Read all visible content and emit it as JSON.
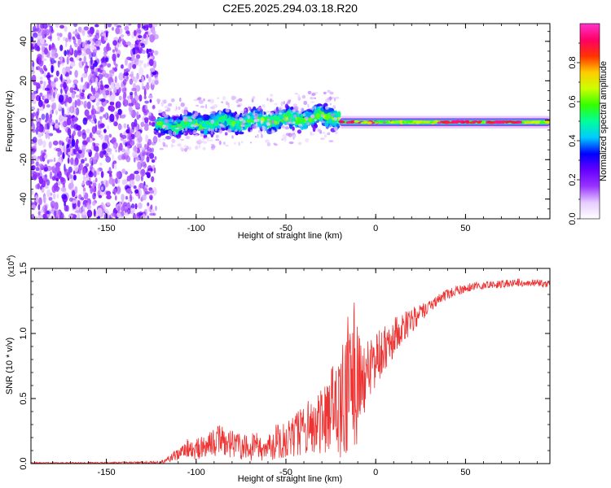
{
  "title": "C2E5.2025.294.03.18.R20",
  "chart_data": [
    {
      "type": "heatmap",
      "title": "C2E5.2025.294.03.18.R20",
      "xlabel": "Height of straight line (km)",
      "ylabel": "Frequency (Hz)",
      "xlim": [
        -192,
        97
      ],
      "ylim": [
        -50,
        49
      ],
      "xticks": [
        -150,
        -100,
        -50,
        0,
        50
      ],
      "yticks": [
        -40,
        -20,
        0,
        20,
        40
      ],
      "colorbar": {
        "label": "Normalized spectral amplitude",
        "range": [
          0,
          1
        ],
        "ticks": [
          0.0,
          0.2,
          0.4,
          0.6,
          0.8
        ],
        "tick_labels": [
          "0.0",
          "0.2",
          "0.4",
          "0.6",
          "0.8"
        ],
        "colors": [
          "#ffffff",
          "#e6ccff",
          "#9933ff",
          "#6600ff",
          "#0000ff",
          "#00ccff",
          "#00ff99",
          "#33ff00",
          "#ccff00",
          "#ffcc00",
          "#ff3300",
          "#ff0066",
          "#ff33cc"
        ]
      },
      "regions": [
        {
          "name": "noise",
          "x_range": [
            -192,
            -122
          ],
          "freq_range": [
            -50,
            49
          ],
          "amplitude": 0.15
        },
        {
          "name": "rising",
          "x_range": [
            -122,
            -20
          ],
          "center_freq_start": -3,
          "center_freq_end": 2,
          "width_hz": 12,
          "amplitude": [
            0.25,
            0.45
          ]
        },
        {
          "name": "stable",
          "x_range": [
            -20,
            97
          ],
          "center_freq": -1,
          "width_hz": 4,
          "amplitude": [
            0.6,
            1.0
          ]
        }
      ]
    },
    {
      "type": "line",
      "xlabel": "Height of straight line (km)",
      "ylabel": "SNR (10 * v/v)",
      "multiplier_base": "(x10",
      "multiplier_exp": "4",
      "multiplier_close": ")",
      "xlim": [
        -192,
        97
      ],
      "ylim": [
        0,
        1.5
      ],
      "xticks": [
        -150,
        -100,
        -50,
        0,
        50
      ],
      "yticks": [
        0.0,
        0.5,
        1.0,
        1.5
      ],
      "ytick_labels": [
        "0.0",
        "0.5",
        "1.0",
        "1.5"
      ],
      "color": "#ee3333",
      "series": [
        {
          "name": "SNR",
          "x": [
            -192,
            -170,
            -150,
            -130,
            -120,
            -116,
            -112,
            -108,
            -104,
            -100,
            -96,
            -92,
            -88,
            -84,
            -80,
            -76,
            -72,
            -68,
            -64,
            -60,
            -56,
            -52,
            -48,
            -44,
            -40,
            -36,
            -32,
            -28,
            -24,
            -20,
            -16,
            -12,
            -8,
            -4,
            0,
            4,
            8,
            12,
            16,
            20,
            25,
            30,
            40,
            50,
            60,
            70,
            80,
            90,
            97
          ],
          "mean": [
            0.005,
            0.005,
            0.006,
            0.008,
            0.01,
            0.03,
            0.06,
            0.09,
            0.12,
            0.11,
            0.13,
            0.16,
            0.18,
            0.17,
            0.15,
            0.13,
            0.12,
            0.13,
            0.14,
            0.15,
            0.17,
            0.19,
            0.21,
            0.24,
            0.27,
            0.3,
            0.33,
            0.37,
            0.41,
            0.47,
            0.55,
            0.58,
            0.65,
            0.72,
            0.8,
            0.87,
            0.94,
            1.0,
            1.06,
            1.1,
            1.15,
            1.22,
            1.3,
            1.35,
            1.37,
            1.38,
            1.39,
            1.39,
            1.38
          ],
          "amp": [
            0.005,
            0.005,
            0.006,
            0.008,
            0.01,
            0.02,
            0.04,
            0.06,
            0.08,
            0.09,
            0.1,
            0.11,
            0.12,
            0.12,
            0.11,
            0.1,
            0.1,
            0.11,
            0.12,
            0.13,
            0.14,
            0.15,
            0.16,
            0.18,
            0.2,
            0.22,
            0.25,
            0.3,
            0.35,
            0.45,
            0.6,
            0.7,
            0.35,
            0.25,
            0.2,
            0.18,
            0.16,
            0.15,
            0.12,
            0.1,
            0.07,
            0.05,
            0.04,
            0.035,
            0.03,
            0.03,
            0.03,
            0.03,
            0.03
          ]
        }
      ]
    }
  ]
}
